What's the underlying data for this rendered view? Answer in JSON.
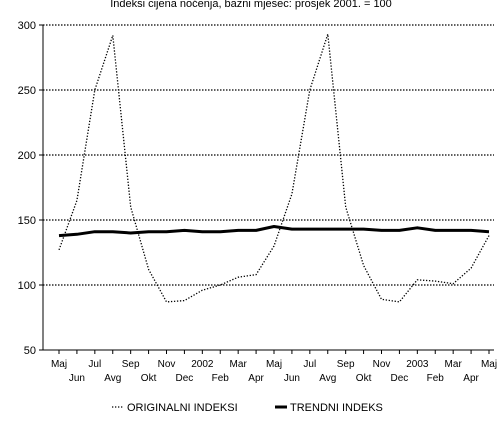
{
  "header_text": "Indeksi cijena noćenja, bazni mjesec: prosjek 2001. = 100",
  "chart_data": {
    "type": "line",
    "title": "",
    "xlabel": "",
    "ylabel": "",
    "ylim": [
      50,
      300
    ],
    "yticks": [
      50,
      100,
      150,
      200,
      250,
      300
    ],
    "grid": true,
    "legend_position": "bottom",
    "categories": [
      "Maj",
      "Jun",
      "Jul",
      "Avg",
      "Sep",
      "Okt",
      "Nov",
      "Dec",
      "2002",
      "Feb",
      "Mar",
      "Apr",
      "Maj",
      "Jun",
      "Jul",
      "Avg",
      "Sep",
      "Okt",
      "Nov",
      "Dec",
      "2003",
      "Feb",
      "Mar",
      "Apr",
      "Maj"
    ],
    "series": [
      {
        "name": "ORIGINALNI INDEKSI",
        "style": "dotted",
        "color": "#000000",
        "values": [
          127,
          165,
          250,
          292,
          160,
          112,
          87,
          88,
          96,
          100,
          106,
          108,
          130,
          170,
          250,
          293,
          160,
          115,
          89,
          87,
          104,
          103,
          101,
          113,
          138
        ]
      },
      {
        "name": "TRENDNI INDEKS",
        "style": "solid",
        "color": "#000000",
        "values": [
          138,
          139,
          141,
          141,
          140,
          141,
          141,
          142,
          141,
          141,
          142,
          142,
          145,
          143,
          143,
          143,
          143,
          143,
          142,
          142,
          144,
          142,
          142,
          142,
          141
        ]
      }
    ]
  }
}
